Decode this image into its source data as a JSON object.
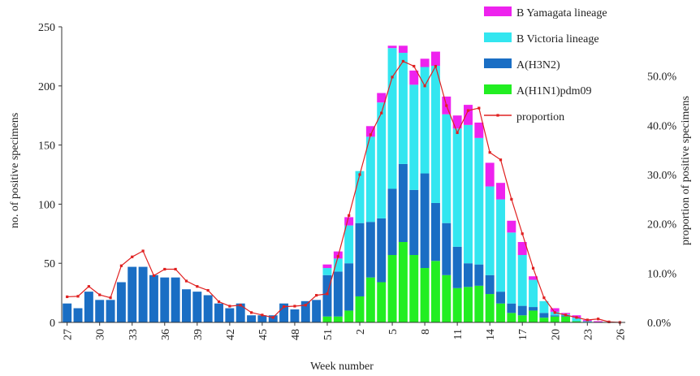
{
  "chart_data": {
    "type": "bar",
    "stacked": true,
    "xlabel": "Week number",
    "ylabel": "no. of positive specimens",
    "y2label": "proportion of positive specimens",
    "ylim": [
      0,
      250
    ],
    "yticks": [
      "0",
      "50",
      "100",
      "150",
      "200",
      "250"
    ],
    "y2lim": [
      0,
      60
    ],
    "y2ticks": [
      "0.0%",
      "10.0%",
      "20.0%",
      "30.0%",
      "40.0%",
      "50.0%"
    ],
    "legend_position": "top-right",
    "weeks": [
      27,
      28,
      29,
      30,
      31,
      32,
      33,
      34,
      35,
      36,
      37,
      38,
      39,
      40,
      41,
      42,
      43,
      44,
      45,
      46,
      47,
      48,
      49,
      50,
      51,
      52,
      1,
      2,
      3,
      4,
      5,
      6,
      7,
      8,
      9,
      10,
      11,
      12,
      13,
      14,
      15,
      16,
      17,
      18,
      19,
      20,
      21,
      22,
      23,
      24,
      25,
      26
    ],
    "xtick_labels": [
      "27",
      "30",
      "33",
      "36",
      "39",
      "42",
      "45",
      "48",
      "51",
      "2",
      "5",
      "8",
      "11",
      "14",
      "17",
      "20",
      "23",
      "26"
    ],
    "series": [
      {
        "name": "A(H1N1)pdm09",
        "color": "#22ee22",
        "values": [
          0,
          0,
          0,
          0,
          0,
          0,
          0,
          0,
          0,
          0,
          0,
          0,
          0,
          0,
          0,
          0,
          0,
          0,
          0,
          0,
          0,
          0,
          0,
          0,
          5,
          5,
          10,
          22,
          38,
          34,
          57,
          68,
          57,
          46,
          52,
          40,
          29,
          30,
          31,
          24,
          16,
          8,
          6,
          10,
          4,
          5,
          5,
          1,
          0,
          0,
          0,
          0
        ]
      },
      {
        "name": "A(H3N2)",
        "color": "#1a6ec4",
        "values": [
          16,
          12,
          26,
          19,
          19,
          34,
          47,
          47,
          40,
          38,
          38,
          28,
          26,
          23,
          16,
          12,
          16,
          6,
          6,
          6,
          16,
          11,
          18,
          19,
          35,
          38,
          40,
          62,
          47,
          54,
          56,
          66,
          55,
          80,
          49,
          44,
          35,
          20,
          18,
          16,
          10,
          8,
          8,
          3,
          4,
          1,
          1,
          0,
          0,
          0,
          0,
          0
        ]
      },
      {
        "name": "B Victoria lineage",
        "color": "#33e6f0",
        "values": [
          0,
          0,
          0,
          0,
          0,
          0,
          0,
          0,
          0,
          0,
          0,
          0,
          0,
          0,
          0,
          0,
          0,
          0,
          0,
          0,
          0,
          0,
          0,
          0,
          6,
          11,
          32,
          44,
          72,
          98,
          119,
          94,
          89,
          90,
          116,
          92,
          100,
          117,
          107,
          75,
          78,
          60,
          43,
          23,
          10,
          3,
          1,
          3,
          1,
          0,
          0,
          0
        ]
      },
      {
        "name": "B Yamagata lineage",
        "color": "#ee22ee",
        "values": [
          0,
          0,
          0,
          0,
          0,
          0,
          0,
          0,
          0,
          0,
          0,
          0,
          0,
          0,
          0,
          0,
          0,
          0,
          0,
          0,
          0,
          0,
          0,
          0,
          3,
          6,
          7,
          0,
          9,
          8,
          2,
          6,
          12,
          7,
          12,
          15,
          11,
          17,
          13,
          20,
          14,
          10,
          11,
          3,
          0,
          3,
          1,
          2,
          1,
          1,
          0,
          0
        ]
      }
    ],
    "line_series": {
      "name": "proportion",
      "color": "#e02020",
      "values": [
        5.2,
        5.3,
        7.3,
        5.6,
        5.0,
        11.5,
        13.3,
        14.5,
        9.5,
        10.8,
        10.8,
        8.4,
        7.3,
        6.5,
        4.2,
        3.3,
        3.5,
        2.0,
        1.5,
        1.0,
        3.2,
        3.3,
        3.5,
        5.5,
        5.8,
        13.4,
        21.7,
        30.0,
        38.1,
        42.5,
        49.8,
        53.0,
        52.0,
        48.0,
        52.0,
        44.0,
        38.5,
        43.0,
        43.5,
        34.5,
        33.0,
        25.0,
        18.0,
        11.0,
        5.0,
        2.0,
        1.5,
        1.0,
        0.5,
        0.7,
        0.1,
        0.0
      ]
    }
  }
}
